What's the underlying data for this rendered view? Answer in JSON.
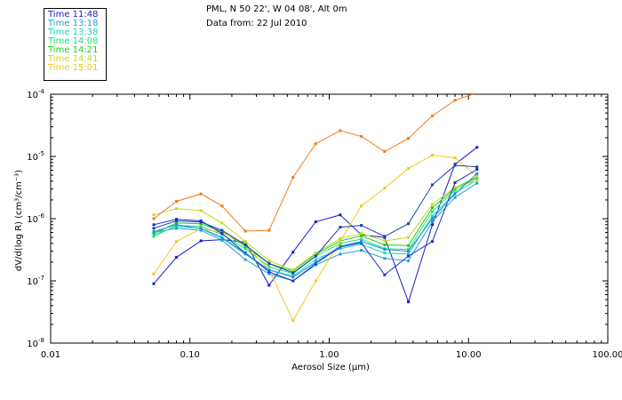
{
  "header": {
    "location": "PML, N 50 22', W 04 08', Alt 0m",
    "date_line": "Data from: 22 Jul 2010"
  },
  "chart_data": {
    "type": "line",
    "title": "",
    "xlabel": "Aerosol Size (µm)",
    "ylabel": "dV/d(log R) (cm³/cm⁻³)",
    "xscale": "log",
    "yscale": "log",
    "xlim": [
      0.01,
      100
    ],
    "ylim": [
      1e-08,
      0.0001
    ],
    "x_tick_labels": [
      "0.01",
      "0.10",
      "1.00",
      "10.00",
      "100.00"
    ],
    "y_tick_labels": [
      {
        "value": 0.0001,
        "base": "10",
        "exp": "-4"
      },
      {
        "value": 1e-05,
        "base": "10",
        "exp": "-5"
      },
      {
        "value": 1e-06,
        "base": "10",
        "exp": "-6"
      },
      {
        "value": 1e-07,
        "base": "10",
        "exp": "-7"
      },
      {
        "value": 1e-08,
        "base": "10",
        "exp": "-8"
      }
    ],
    "legend_position": "top-left",
    "x": [
      0.055,
      0.08,
      0.12,
      0.17,
      0.25,
      0.37,
      0.55,
      0.8,
      1.2,
      1.7,
      2.5,
      3.7,
      5.5,
      8.0,
      11.5
    ],
    "series": [
      {
        "name": "Time 11:48",
        "color": "#1a1acc",
        "values": [
          9e-08,
          2.4e-07,
          4.4e-07,
          4.6e-07,
          4.2e-07,
          8.5e-08,
          2.9e-07,
          8.9e-07,
          1.15e-06,
          5.5e-07,
          5e-07,
          4.6e-08,
          8e-07,
          7.5e-06,
          1.4e-05
        ]
      },
      {
        "name": "Time 13:18",
        "color": "#1aa0dd",
        "values": [
          6e-07,
          7e-07,
          6.5e-07,
          4.5e-07,
          2.2e-07,
          1.3e-07,
          1e-07,
          1.8e-07,
          2.7e-07,
          3.1e-07,
          2.3e-07,
          2.1e-07,
          9e-07,
          2.2e-06,
          3.7e-06
        ]
      },
      {
        "name": "Time 13:38",
        "color": "#1ad6c0",
        "values": [
          5.5e-07,
          7.5e-07,
          7e-07,
          5e-07,
          2.8e-07,
          1.5e-07,
          1.2e-07,
          2.2e-07,
          3.3e-07,
          3.9e-07,
          2.8e-07,
          2.7e-07,
          1.1e-06,
          2.6e-06,
          4.2e-06
        ]
      },
      {
        "name": "Time 14:08",
        "color": "#22e070",
        "values": [
          5.2e-07,
          7.8e-07,
          7.5e-07,
          5.6e-07,
          3.3e-07,
          1.7e-07,
          1.3e-07,
          2.5e-07,
          4e-07,
          4.7e-07,
          3.3e-07,
          3.2e-07,
          1.3e-06,
          2.9e-06,
          4.5e-06
        ]
      },
      {
        "name": "Time 14:21",
        "color": "#22cc22",
        "values": [
          5.8e-07,
          8.5e-07,
          8.3e-07,
          6.2e-07,
          3.6e-07,
          1.9e-07,
          1.45e-07,
          2.7e-07,
          4.4e-07,
          5.3e-07,
          3.8e-07,
          3.7e-07,
          1.5e-06,
          3.1e-06,
          4.7e-06
        ]
      },
      {
        "name": "Time 14:41",
        "color": "#c8d81e",
        "values": [
          1.15e-06,
          1.45e-06,
          1.35e-06,
          8.5e-07,
          4.3e-07,
          2.1e-07,
          1.5e-07,
          2.8e-07,
          4.8e-07,
          5.8e-07,
          4.4e-07,
          5e-07,
          1.7e-06,
          3.2e-06,
          4.1e-06
        ]
      },
      {
        "name": "Time 15:01",
        "color": "#f2c81e",
        "values": [
          1.3e-07,
          4.3e-07,
          6.9e-07,
          6e-07,
          3.9e-07,
          1.5e-07,
          2.3e-08,
          1e-07,
          4.3e-07,
          1.6e-06,
          3.1e-06,
          6.4e-06,
          1.05e-05,
          9.5e-06,
          4.8e-06
        ]
      },
      {
        "name": "",
        "color": "#f07a1a",
        "values": [
          1e-06,
          1.9e-06,
          2.5e-06,
          1.6e-06,
          6.3e-07,
          6.5e-07,
          4.6e-06,
          1.6e-05,
          2.6e-05,
          2.1e-05,
          1.2e-05,
          1.95e-05,
          4.5e-05,
          8e-05,
          0.000105
        ]
      },
      {
        "name": "",
        "color": "#1a3fb0",
        "values": [
          7e-07,
          9.2e-07,
          8.8e-07,
          6.5e-07,
          3.8e-07,
          1.9e-07,
          1.35e-07,
          2.5e-07,
          7.3e-07,
          7.8e-07,
          5.2e-07,
          8.3e-07,
          3.5e-06,
          7.2e-06,
          6.8e-06
        ]
      },
      {
        "name": "",
        "color": "#1a2cc8",
        "values": [
          8e-07,
          9.8e-07,
          9.2e-07,
          5.8e-07,
          2.8e-07,
          1.4e-07,
          1e-07,
          1.9e-07,
          3.5e-07,
          4.1e-07,
          1.25e-07,
          2.5e-07,
          4.3e-07,
          3.8e-06,
          6.2e-06
        ]
      },
      {
        "name": "",
        "color": "#1a8fe0",
        "values": [
          6.2e-07,
          8e-07,
          6.9e-07,
          4.9e-07,
          2.7e-07,
          1.5e-07,
          1.15e-07,
          2e-07,
          3.6e-07,
          4.3e-07,
          3.2e-07,
          3e-07,
          1e-06,
          2.5e-06,
          5.3e-06
        ]
      }
    ]
  }
}
